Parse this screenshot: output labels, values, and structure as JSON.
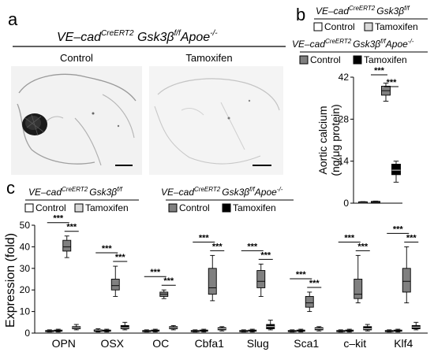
{
  "panel_a": {
    "letter": "a",
    "genotype": "VE–cad",
    "genotype_sup": "CreERT2",
    "genotype_mid": " Gsk3β",
    "genotype_sup2": "f/f",
    "genotype_end": "Apoe",
    "genotype_sup3": "-/-",
    "left_label": "Control",
    "right_label": "Tamoxifen"
  },
  "panel_b": {
    "letter": "b",
    "legend1": {
      "genotype": "VE–cad",
      "sup": "CreERT2",
      "mid": "Gsk3β",
      "sup2": "f/f",
      "items": [
        "Control",
        "Tamoxifen"
      ]
    },
    "legend2": {
      "genotype": "VE–cad",
      "sup": "CreERT2",
      "mid": "Gsk3β",
      "sup2": "f/f",
      "end": "Apoe",
      "sup3": "-/-",
      "items": [
        "Control",
        "Tamoxifen"
      ]
    },
    "ylabel_line1": "Aortic calcium",
    "ylabel_line2": "(ng/μg protein)",
    "sig": [
      "***",
      "***"
    ]
  },
  "panel_c": {
    "letter": "c",
    "legend1": {
      "genotype": "VE–cad",
      "sup": "CreERT2",
      "mid": "Gsk3β",
      "sup2": "f/f",
      "items": [
        "Control",
        "Tamoxifen"
      ]
    },
    "legend2": {
      "genotype": "VE–cad",
      "sup": "CreERT2",
      "mid": "Gsk3β",
      "sup2": "f/f",
      "end": "Apoe",
      "sup3": "-/-",
      "items": [
        "Control",
        "Tamoxifen"
      ]
    },
    "ylabel": "Expression (fold)",
    "sig": "***"
  },
  "colors": {
    "control_ctrl": "#ffffff",
    "control_tam": "#d9d9d9",
    "apoe_ctrl": "#808080",
    "apoe_tam": "#000000"
  },
  "chart_data": [
    {
      "type": "box",
      "panel": "b",
      "title": "",
      "xlabel": "",
      "ylabel": "Aortic calcium (ng/μg protein)",
      "ylim": [
        0,
        42
      ],
      "yticks": [
        0,
        14,
        28,
        42
      ],
      "grid": false,
      "series": [
        {
          "name": "Control",
          "group": "Gsk3β f/f",
          "color": "#ffffff",
          "min": 0.2,
          "q1": 0.3,
          "median": 0.35,
          "q3": 0.45,
          "max": 0.5
        },
        {
          "name": "Tamoxifen",
          "group": "Gsk3β f/f",
          "color": "#d9d9d9",
          "min": 0.3,
          "q1": 0.4,
          "median": 0.5,
          "q3": 0.6,
          "max": 0.7
        },
        {
          "name": "Control",
          "group": "Gsk3β f/f Apoe -/-",
          "color": "#808080",
          "min": 34,
          "q1": 36,
          "median": 37.5,
          "q3": 39,
          "max": 40
        },
        {
          "name": "Tamoxifen",
          "group": "Gsk3β f/f Apoe -/-",
          "color": "#000000",
          "min": 7,
          "q1": 9.5,
          "median": 11,
          "q3": 13,
          "max": 14
        }
      ]
    },
    {
      "type": "box",
      "panel": "c",
      "title": "",
      "xlabel": "",
      "ylabel": "Expression (fold)",
      "ylim": [
        0,
        50
      ],
      "yticks": [
        0,
        10,
        20,
        30,
        40,
        50
      ],
      "grid": false,
      "categories": [
        "OPN",
        "OSX",
        "OC",
        "Cbfa1",
        "Slug",
        "Sca1",
        "c–kit",
        "Klf4"
      ],
      "series": [
        {
          "name": "Control (Gsk3β f/f)",
          "color": "#ffffff",
          "values": [
            {
              "min": 0.5,
              "q1": 0.8,
              "median": 1,
              "q3": 1.2,
              "max": 1.5
            },
            {
              "min": 0.5,
              "q1": 0.8,
              "median": 1,
              "q3": 1.5,
              "max": 2
            },
            {
              "min": 0.5,
              "q1": 0.8,
              "median": 1,
              "q3": 1.2,
              "max": 1.5
            },
            {
              "min": 0.5,
              "q1": 0.8,
              "median": 1,
              "q3": 1.2,
              "max": 1.5
            },
            {
              "min": 0.5,
              "q1": 0.8,
              "median": 1,
              "q3": 1.2,
              "max": 1.5
            },
            {
              "min": 0.5,
              "q1": 0.8,
              "median": 1,
              "q3": 1.2,
              "max": 1.5
            },
            {
              "min": 0.5,
              "q1": 0.8,
              "median": 1,
              "q3": 1.2,
              "max": 1.5
            },
            {
              "min": 0.5,
              "q1": 0.8,
              "median": 1,
              "q3": 1.2,
              "max": 1.5
            }
          ]
        },
        {
          "name": "Tamoxifen (Gsk3β f/f)",
          "color": "#d9d9d9",
          "values": [
            {
              "min": 0.5,
              "q1": 0.9,
              "median": 1.1,
              "q3": 1.4,
              "max": 1.8
            },
            {
              "min": 0.5,
              "q1": 0.9,
              "median": 1.1,
              "q3": 1.4,
              "max": 1.8
            },
            {
              "min": 0.5,
              "q1": 0.9,
              "median": 1.1,
              "q3": 1.4,
              "max": 1.8
            },
            {
              "min": 0.5,
              "q1": 0.9,
              "median": 1.1,
              "q3": 1.4,
              "max": 1.8
            },
            {
              "min": 0.5,
              "q1": 0.9,
              "median": 1.1,
              "q3": 1.4,
              "max": 1.8
            },
            {
              "min": 0.5,
              "q1": 0.9,
              "median": 1.1,
              "q3": 1.4,
              "max": 1.8
            },
            {
              "min": 0.5,
              "q1": 0.9,
              "median": 1.1,
              "q3": 1.4,
              "max": 1.8
            },
            {
              "min": 0.5,
              "q1": 0.9,
              "median": 1.1,
              "q3": 1.4,
              "max": 1.8
            }
          ]
        },
        {
          "name": "Control (Apoe -/-)",
          "color": "#808080",
          "values": [
            {
              "min": 35,
              "q1": 38,
              "median": 40,
              "q3": 43,
              "max": 45
            },
            {
              "min": 17,
              "q1": 20,
              "median": 22,
              "q3": 25,
              "max": 31
            },
            {
              "min": 16,
              "q1": 17,
              "median": 18,
              "q3": 19,
              "max": 20
            },
            {
              "min": 15,
              "q1": 18,
              "median": 21,
              "q3": 30,
              "max": 36
            },
            {
              "min": 17,
              "q1": 21,
              "median": 24,
              "q3": 29,
              "max": 32
            },
            {
              "min": 10,
              "q1": 12,
              "median": 14,
              "q3": 17,
              "max": 19
            },
            {
              "min": 14,
              "q1": 16,
              "median": 18,
              "q3": 25,
              "max": 36
            },
            {
              "min": 14,
              "q1": 19,
              "median": 24,
              "q3": 30,
              "max": 40
            }
          ]
        },
        {
          "name": "Tamoxifen (Apoe -/-)",
          "color": "#000000",
          "values": [
            {
              "min": 1.5,
              "q1": 2,
              "median": 2.5,
              "q3": 3,
              "max": 4
            },
            {
              "min": 1.5,
              "q1": 2,
              "median": 2.5,
              "q3": 3.5,
              "max": 5
            },
            {
              "min": 1.5,
              "q1": 2,
              "median": 2.5,
              "q3": 3,
              "max": 3.5
            },
            {
              "min": 1,
              "q1": 1.5,
              "median": 2,
              "q3": 2.5,
              "max": 3
            },
            {
              "min": 1.5,
              "q1": 2,
              "median": 3,
              "q3": 4,
              "max": 6
            },
            {
              "min": 1,
              "q1": 1.5,
              "median": 2,
              "q3": 2.5,
              "max": 3
            },
            {
              "min": 1,
              "q1": 1.5,
              "median": 2,
              "q3": 3,
              "max": 4
            },
            {
              "min": 1.5,
              "q1": 2,
              "median": 2.8,
              "q3": 3.5,
              "max": 5
            }
          ]
        }
      ]
    }
  ]
}
